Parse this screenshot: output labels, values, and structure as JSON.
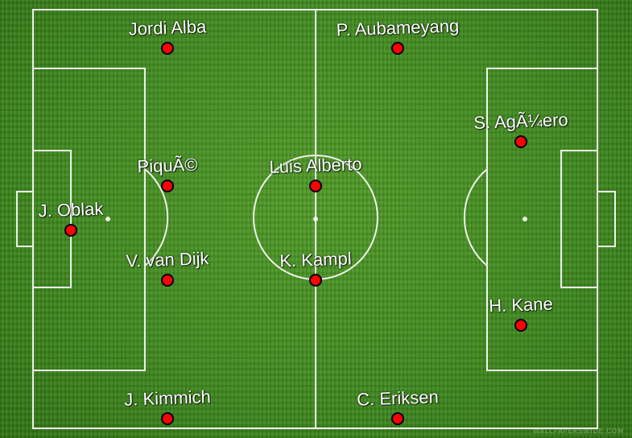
{
  "pitch": {
    "grass_color": "#3f8a1e",
    "line_color": "#ffffff",
    "marker_color": "#ff0000"
  },
  "players": [
    {
      "name": "Jordi Alba"
    },
    {
      "name": "P. Aubameyang"
    },
    {
      "name": "S. AgÃ¼ero"
    },
    {
      "name": "PiquÃ©"
    },
    {
      "name": "Luis Alberto"
    },
    {
      "name": "J. Oblak"
    },
    {
      "name": "V. van Dijk"
    },
    {
      "name": "K. Kampl"
    },
    {
      "name": "H. Kane"
    },
    {
      "name": "J. Kimmich"
    },
    {
      "name": "C. Eriksen"
    }
  ],
  "watermark": "WALLPAPERSWIDE.COM"
}
